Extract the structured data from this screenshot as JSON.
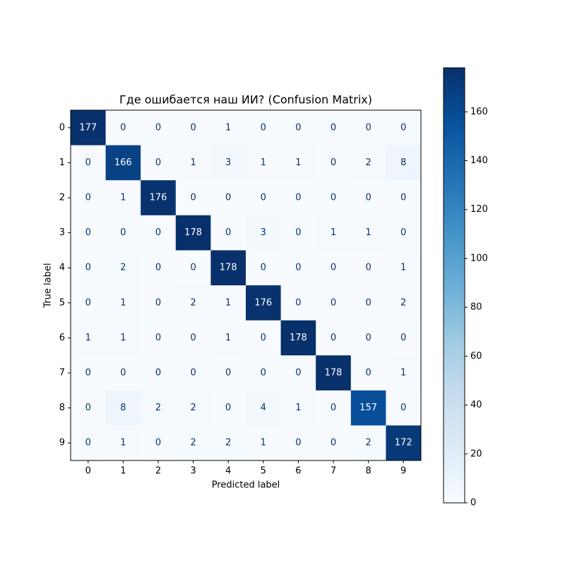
{
  "chart_data": {
    "type": "heatmap",
    "title": "Где ошибается наш ИИ? (Confusion Matrix)",
    "xlabel": "Predicted label",
    "ylabel": "True label",
    "x_categories": [
      "0",
      "1",
      "2",
      "3",
      "4",
      "5",
      "6",
      "7",
      "8",
      "9"
    ],
    "y_categories": [
      "0",
      "1",
      "2",
      "3",
      "4",
      "5",
      "6",
      "7",
      "8",
      "9"
    ],
    "values": [
      [
        177,
        0,
        0,
        0,
        1,
        0,
        0,
        0,
        0,
        0
      ],
      [
        0,
        166,
        0,
        1,
        3,
        1,
        1,
        0,
        2,
        8
      ],
      [
        0,
        1,
        176,
        0,
        0,
        0,
        0,
        0,
        0,
        0
      ],
      [
        0,
        0,
        0,
        178,
        0,
        3,
        0,
        1,
        1,
        0
      ],
      [
        0,
        2,
        0,
        0,
        178,
        0,
        0,
        0,
        0,
        1
      ],
      [
        0,
        1,
        0,
        2,
        1,
        176,
        0,
        0,
        0,
        2
      ],
      [
        1,
        1,
        0,
        0,
        1,
        0,
        178,
        0,
        0,
        0
      ],
      [
        0,
        0,
        0,
        0,
        0,
        0,
        0,
        178,
        0,
        1
      ],
      [
        0,
        8,
        2,
        2,
        0,
        4,
        1,
        0,
        157,
        0
      ],
      [
        0,
        1,
        0,
        2,
        2,
        1,
        0,
        0,
        2,
        172
      ]
    ],
    "colormap": "Blues",
    "zlim": [
      0,
      178
    ],
    "zticks": [
      0,
      20,
      40,
      60,
      80,
      100,
      120,
      140,
      160
    ]
  }
}
